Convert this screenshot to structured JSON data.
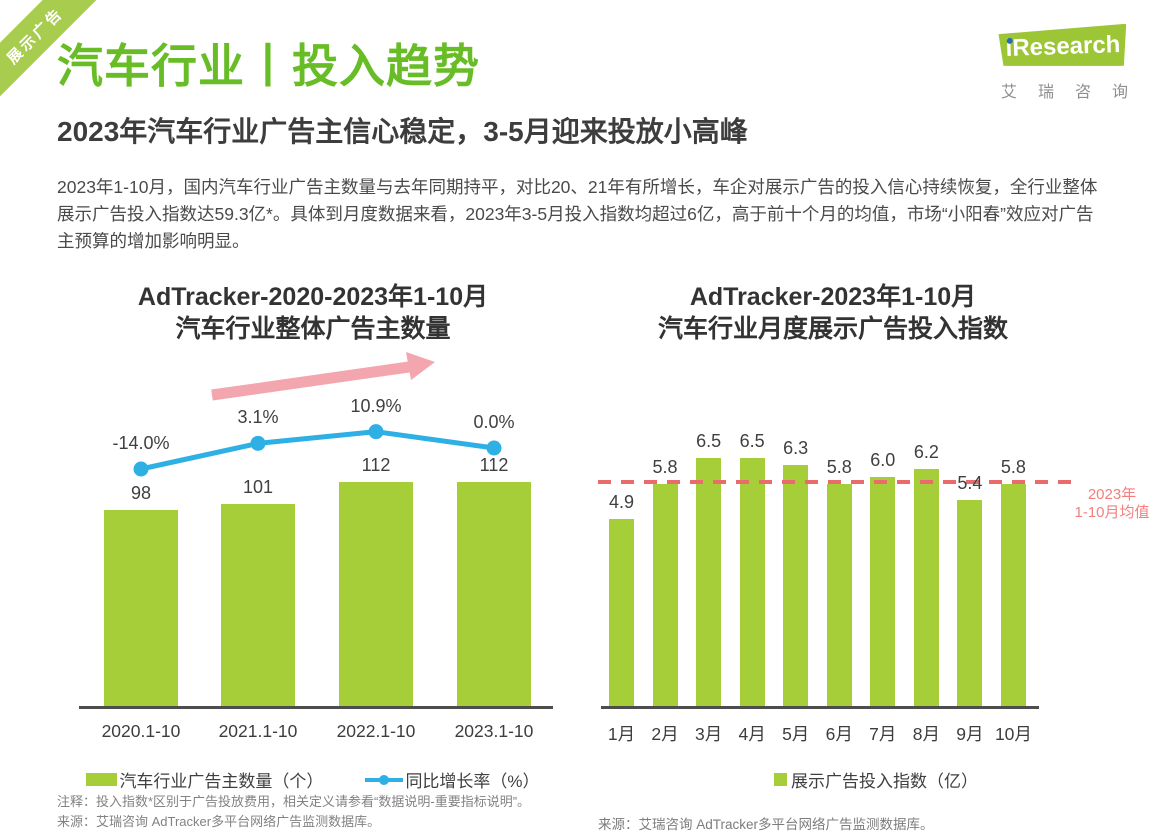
{
  "ribbon": {
    "label": "展示广告"
  },
  "logo": {
    "name_i": "i",
    "name_rest": "Research",
    "subtitle_cn": "艾瑞咨询"
  },
  "header": {
    "title": "汽车行业丨投入趋势",
    "subtitle": "2023年汽车行业广告主信心稳定，3-5月迎来投放小高峰",
    "body": "2023年1-10月，国内汽车行业广告主数量与去年同期持平，对比20、21年有所增长，车企对展示广告的投入信心持续恢复，全行业整体展示广告投入指数达59.3亿*。具体到月度数据来看，2023年3-5月投入指数均超过6亿，高于前十个月的均值，市场“小阳春”效应对广告主预算的增加影响明显。"
  },
  "colors": {
    "bar_green": "#a5ce39",
    "line_blue": "#2fb0e5",
    "arrow_pink": "#f3a6ae",
    "mean_red": "#e96b6b",
    "title_green": "#68bd27"
  },
  "chart_data": [
    {
      "type": "bar",
      "title_line1": "AdTracker-2020-2023年1-10月",
      "title_line2": "汽车行业整体广告主数量",
      "categories": [
        "2020.1-10",
        "2021.1-10",
        "2022.1-10",
        "2023.1-10"
      ],
      "series": [
        {
          "name": "汽车行业广告主数量（个）",
          "type": "bar",
          "values": [
            98,
            101,
            112,
            112
          ]
        },
        {
          "name": "同比增长率（%）",
          "type": "line",
          "values": [
            -14.0,
            3.1,
            10.9,
            0.0
          ],
          "labels": [
            "-14.0%",
            "3.1%",
            "10.9%",
            "0.0%"
          ]
        }
      ],
      "legend_position": "bottom",
      "annotations": {
        "trend_arrow": "up-right"
      }
    },
    {
      "type": "bar",
      "title_line1": "AdTracker-2023年1-10月",
      "title_line2": "汽车行业月度展示广告投入指数",
      "categories": [
        "1月",
        "2月",
        "3月",
        "4月",
        "5月",
        "6月",
        "7月",
        "8月",
        "9月",
        "10月"
      ],
      "values": [
        4.9,
        5.8,
        6.5,
        6.5,
        6.3,
        5.8,
        6.0,
        6.2,
        5.4,
        5.8
      ],
      "legend": "展示广告投入指数（亿）",
      "legend_position": "bottom",
      "mean_line": {
        "value": 5.92,
        "label_line1": "2023年",
        "label_line2": "1-10月均值"
      }
    }
  ],
  "footnotes": {
    "left_line1": "注释：投入指数*区别于广告投放费用，相关定义请参看“数据说明-重要指标说明”。",
    "left_line2": "来源：艾瑞咨询 AdTracker多平台网络广告监测数据库。",
    "right_line": "来源：艾瑞咨询 AdTracker多平台网络广告监测数据库。"
  }
}
